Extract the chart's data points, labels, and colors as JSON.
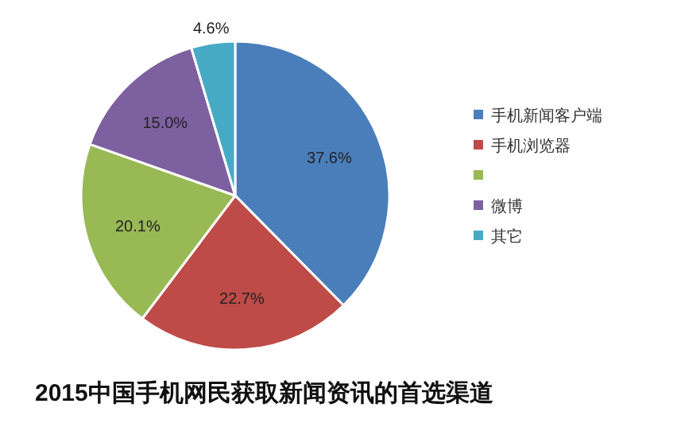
{
  "chart_data": {
    "type": "pie",
    "title": "2015中国手机网民获取新闻资讯的首选渠道",
    "categories": [
      "手机新闻客户端",
      "手机浏览器",
      null,
      "微博",
      "其它"
    ],
    "values": [
      37.6,
      22.7,
      20.1,
      15.0,
      4.6
    ],
    "colors": [
      "#4a7ebb",
      "#be4b48",
      "#98b954",
      "#7d60a0",
      "#46aac5"
    ],
    "value_labels": [
      "37.6%",
      "22.7%",
      "20.1%",
      "15.0%",
      "4.6%"
    ],
    "legend": "right"
  }
}
